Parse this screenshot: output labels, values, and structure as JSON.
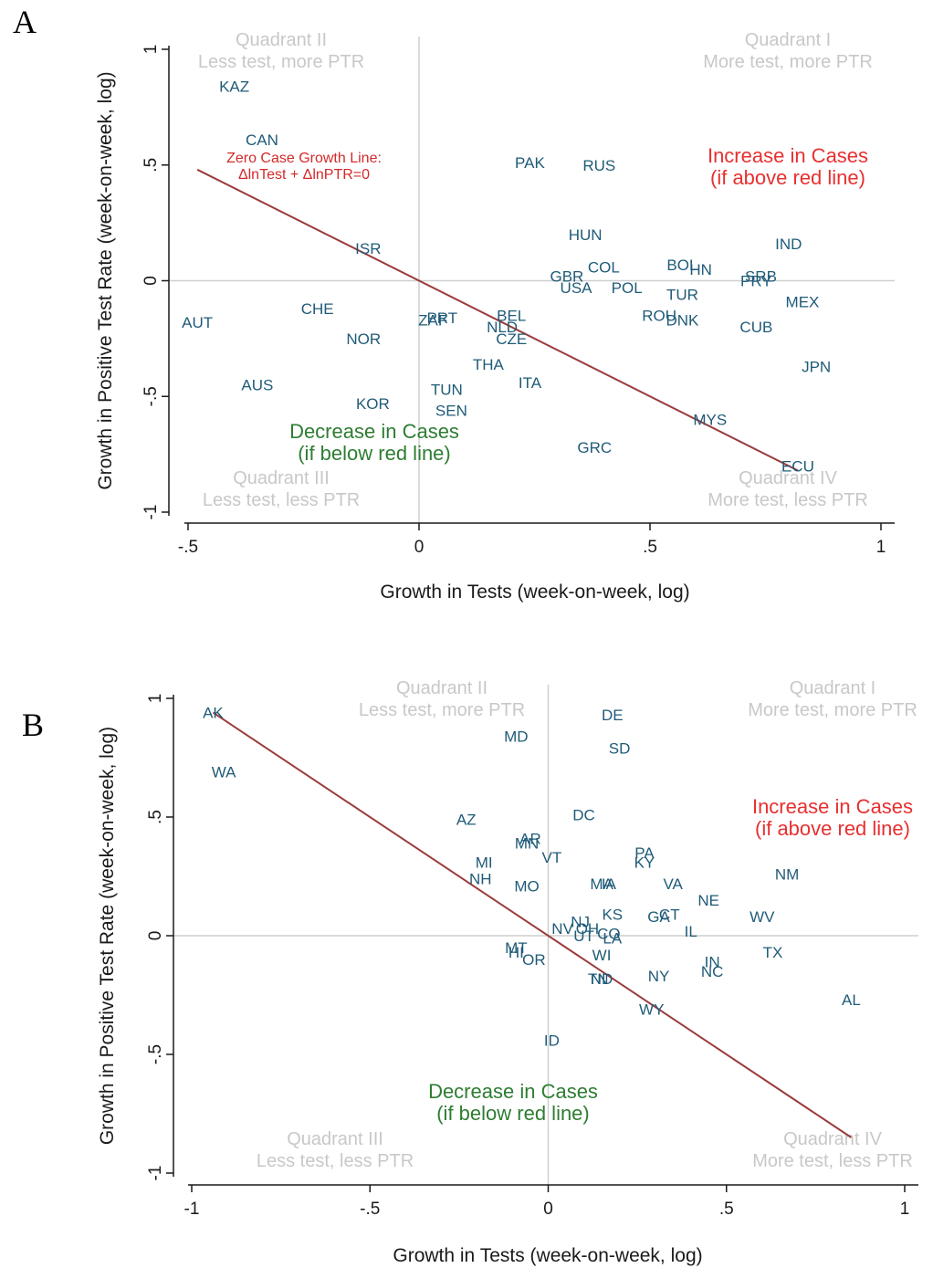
{
  "chart_data": [
    {
      "panel": "A",
      "type": "scatter",
      "xlabel": "Growth in Tests (week-on-week, log)",
      "ylabel": "Growth in Positive Test Rate (week-on-week, log)",
      "xlim": [
        -0.5,
        1.0
      ],
      "ylim": [
        -1.0,
        1.0
      ],
      "xticks": [
        -0.5,
        0,
        0.5,
        1
      ],
      "xtick_labels": [
        "-.5",
        "0",
        ".5",
        "1"
      ],
      "yticks": [
        -1,
        -0.5,
        0,
        0.5,
        1
      ],
      "ytick_labels": [
        "-1",
        "-.5",
        "0",
        ".5",
        "1"
      ],
      "grid": false,
      "reference_lines": {
        "x": 0,
        "y": 0
      },
      "fit_line": {
        "x": [
          -0.48,
          0.82
        ],
        "y": [
          0.48,
          -0.82
        ]
      },
      "zero_line_label": [
        "Zero Case Growth Line:",
        "ΔlnTest + ΔlnPTR=0"
      ],
      "increase_label": [
        "Increase in Cases",
        "(if above red line)"
      ],
      "decrease_label": [
        "Decrease in Cases",
        "(if below red line)"
      ],
      "quadrants": {
        "q1": [
          "Quadrant I",
          "More test, more PTR"
        ],
        "q2": [
          "Quadrant II",
          "Less test, more PTR"
        ],
        "q3": [
          "Quadrant III",
          "Less test, less PTR"
        ],
        "q4": [
          "Quadrant IV",
          "More test, less PTR"
        ]
      },
      "points": [
        {
          "label": "KAZ",
          "x": -0.4,
          "y": 0.84
        },
        {
          "label": "CAN",
          "x": -0.34,
          "y": 0.61
        },
        {
          "label": "PAK",
          "x": 0.24,
          "y": 0.51
        },
        {
          "label": "RUS",
          "x": 0.39,
          "y": 0.5
        },
        {
          "label": "ISR",
          "x": -0.11,
          "y": 0.14
        },
        {
          "label": "HUN",
          "x": 0.36,
          "y": 0.2
        },
        {
          "label": "IND",
          "x": 0.8,
          "y": 0.16
        },
        {
          "label": "BOL",
          "x": 0.57,
          "y": 0.07
        },
        {
          "label": "HN",
          "x": 0.61,
          "y": 0.05
        },
        {
          "label": "COL",
          "x": 0.4,
          "y": 0.06
        },
        {
          "label": "GBR",
          "x": 0.32,
          "y": 0.02
        },
        {
          "label": "USA",
          "x": 0.34,
          "y": -0.03
        },
        {
          "label": "POL",
          "x": 0.45,
          "y": -0.03
        },
        {
          "label": "SRB",
          "x": 0.74,
          "y": 0.02
        },
        {
          "label": "PRY",
          "x": 0.73,
          "y": 0.0
        },
        {
          "label": "TUR",
          "x": 0.57,
          "y": -0.06
        },
        {
          "label": "MEX",
          "x": 0.83,
          "y": -0.09
        },
        {
          "label": "CHE",
          "x": -0.22,
          "y": -0.12
        },
        {
          "label": "AUT",
          "x": -0.48,
          "y": -0.18
        },
        {
          "label": "ZAF",
          "x": 0.03,
          "y": -0.17
        },
        {
          "label": "PRT",
          "x": 0.05,
          "y": -0.16
        },
        {
          "label": "BEL",
          "x": 0.2,
          "y": -0.15
        },
        {
          "label": "NLD",
          "x": 0.18,
          "y": -0.2
        },
        {
          "label": "CZE",
          "x": 0.2,
          "y": -0.25
        },
        {
          "label": "ROU",
          "x": 0.52,
          "y": -0.15
        },
        {
          "label": "DNK",
          "x": 0.57,
          "y": -0.17
        },
        {
          "label": "CUB",
          "x": 0.73,
          "y": -0.2
        },
        {
          "label": "NOR",
          "x": -0.12,
          "y": -0.25
        },
        {
          "label": "THA",
          "x": 0.15,
          "y": -0.36
        },
        {
          "label": "JPN",
          "x": 0.86,
          "y": -0.37
        },
        {
          "label": "AUS",
          "x": -0.35,
          "y": -0.45
        },
        {
          "label": "ITA",
          "x": 0.24,
          "y": -0.44
        },
        {
          "label": "TUN",
          "x": 0.06,
          "y": -0.47
        },
        {
          "label": "KOR",
          "x": -0.1,
          "y": -0.53
        },
        {
          "label": "SEN",
          "x": 0.07,
          "y": -0.56
        },
        {
          "label": "MYS",
          "x": 0.63,
          "y": -0.6
        },
        {
          "label": "GRC",
          "x": 0.38,
          "y": -0.72
        },
        {
          "label": "ECU",
          "x": 0.82,
          "y": -0.8
        }
      ]
    },
    {
      "panel": "B",
      "type": "scatter",
      "xlabel": "Growth in Tests (week-on-week, log)",
      "ylabel": "Growth in Positive Test Rate (week-on-week, log)",
      "xlim": [
        -1.0,
        1.0
      ],
      "ylim": [
        -1.0,
        1.0
      ],
      "xticks": [
        -1,
        -0.5,
        0,
        0.5,
        1
      ],
      "xtick_labels": [
        "-1",
        "-.5",
        "0",
        ".5",
        "1"
      ],
      "yticks": [
        -1,
        -0.5,
        0,
        0.5,
        1
      ],
      "ytick_labels": [
        "-1",
        "-.5",
        "0",
        ".5",
        "1"
      ],
      "grid": false,
      "reference_lines": {
        "x": 0,
        "y": 0
      },
      "fit_line": {
        "x": [
          -0.94,
          0.85
        ],
        "y": [
          0.94,
          -0.85
        ]
      },
      "increase_label": [
        "Increase in Cases",
        "(if above red line)"
      ],
      "decrease_label": [
        "Decrease in Cases",
        "(if below red line)"
      ],
      "quadrants": {
        "q1": [
          "Quadrant I",
          "More test, more PTR"
        ],
        "q2": [
          "Quadrant II",
          "Less test, more PTR"
        ],
        "q3": [
          "Quadrant III",
          "Less test, less PTR"
        ],
        "q4": [
          "Quadrant IV",
          "More test, less PTR"
        ]
      },
      "points": [
        {
          "label": "AK",
          "x": -0.94,
          "y": 0.94
        },
        {
          "label": "DE",
          "x": 0.18,
          "y": 0.93
        },
        {
          "label": "MD",
          "x": -0.09,
          "y": 0.84
        },
        {
          "label": "SD",
          "x": 0.2,
          "y": 0.79
        },
        {
          "label": "WA",
          "x": -0.91,
          "y": 0.69
        },
        {
          "label": "DC",
          "x": 0.1,
          "y": 0.51
        },
        {
          "label": "AZ",
          "x": -0.23,
          "y": 0.49
        },
        {
          "label": "AR",
          "x": -0.05,
          "y": 0.41
        },
        {
          "label": "MN",
          "x": -0.06,
          "y": 0.39
        },
        {
          "label": "VT",
          "x": 0.01,
          "y": 0.33
        },
        {
          "label": "PA",
          "x": 0.27,
          "y": 0.35
        },
        {
          "label": "KY",
          "x": 0.27,
          "y": 0.31
        },
        {
          "label": "MI",
          "x": -0.18,
          "y": 0.31
        },
        {
          "label": "NH",
          "x": -0.19,
          "y": 0.24
        },
        {
          "label": "NM",
          "x": 0.67,
          "y": 0.26
        },
        {
          "label": "MA",
          "x": 0.15,
          "y": 0.22
        },
        {
          "label": "IA",
          "x": 0.17,
          "y": 0.22
        },
        {
          "label": "VA",
          "x": 0.35,
          "y": 0.22
        },
        {
          "label": "MO",
          "x": -0.06,
          "y": 0.21
        },
        {
          "label": "NE",
          "x": 0.45,
          "y": 0.15
        },
        {
          "label": "KS",
          "x": 0.18,
          "y": 0.09
        },
        {
          "label": "GA",
          "x": 0.31,
          "y": 0.08
        },
        {
          "label": "CT",
          "x": 0.34,
          "y": 0.09
        },
        {
          "label": "WV",
          "x": 0.6,
          "y": 0.08
        },
        {
          "label": "NJ",
          "x": 0.09,
          "y": 0.06
        },
        {
          "label": "NV",
          "x": 0.04,
          "y": 0.03
        },
        {
          "label": "OH",
          "x": 0.11,
          "y": 0.03
        },
        {
          "label": "CO",
          "x": 0.17,
          "y": 0.01
        },
        {
          "label": "UT",
          "x": 0.1,
          "y": 0.0
        },
        {
          "label": "LA",
          "x": 0.18,
          "y": -0.01
        },
        {
          "label": "IL",
          "x": 0.4,
          "y": 0.02
        },
        {
          "label": "MT",
          "x": -0.09,
          "y": -0.05
        },
        {
          "label": "HI",
          "x": -0.09,
          "y": -0.07
        },
        {
          "label": "OR",
          "x": -0.04,
          "y": -0.1
        },
        {
          "label": "WI",
          "x": 0.15,
          "y": -0.08
        },
        {
          "label": "TX",
          "x": 0.63,
          "y": -0.07
        },
        {
          "label": "IN",
          "x": 0.46,
          "y": -0.11
        },
        {
          "label": "NC",
          "x": 0.46,
          "y": -0.15
        },
        {
          "label": "TN",
          "x": 0.14,
          "y": -0.18
        },
        {
          "label": "ND",
          "x": 0.15,
          "y": -0.18
        },
        {
          "label": "NY",
          "x": 0.31,
          "y": -0.17
        },
        {
          "label": "AL",
          "x": 0.85,
          "y": -0.27
        },
        {
          "label": "WY",
          "x": 0.29,
          "y": -0.31
        },
        {
          "label": "ID",
          "x": 0.01,
          "y": -0.44
        }
      ]
    }
  ]
}
